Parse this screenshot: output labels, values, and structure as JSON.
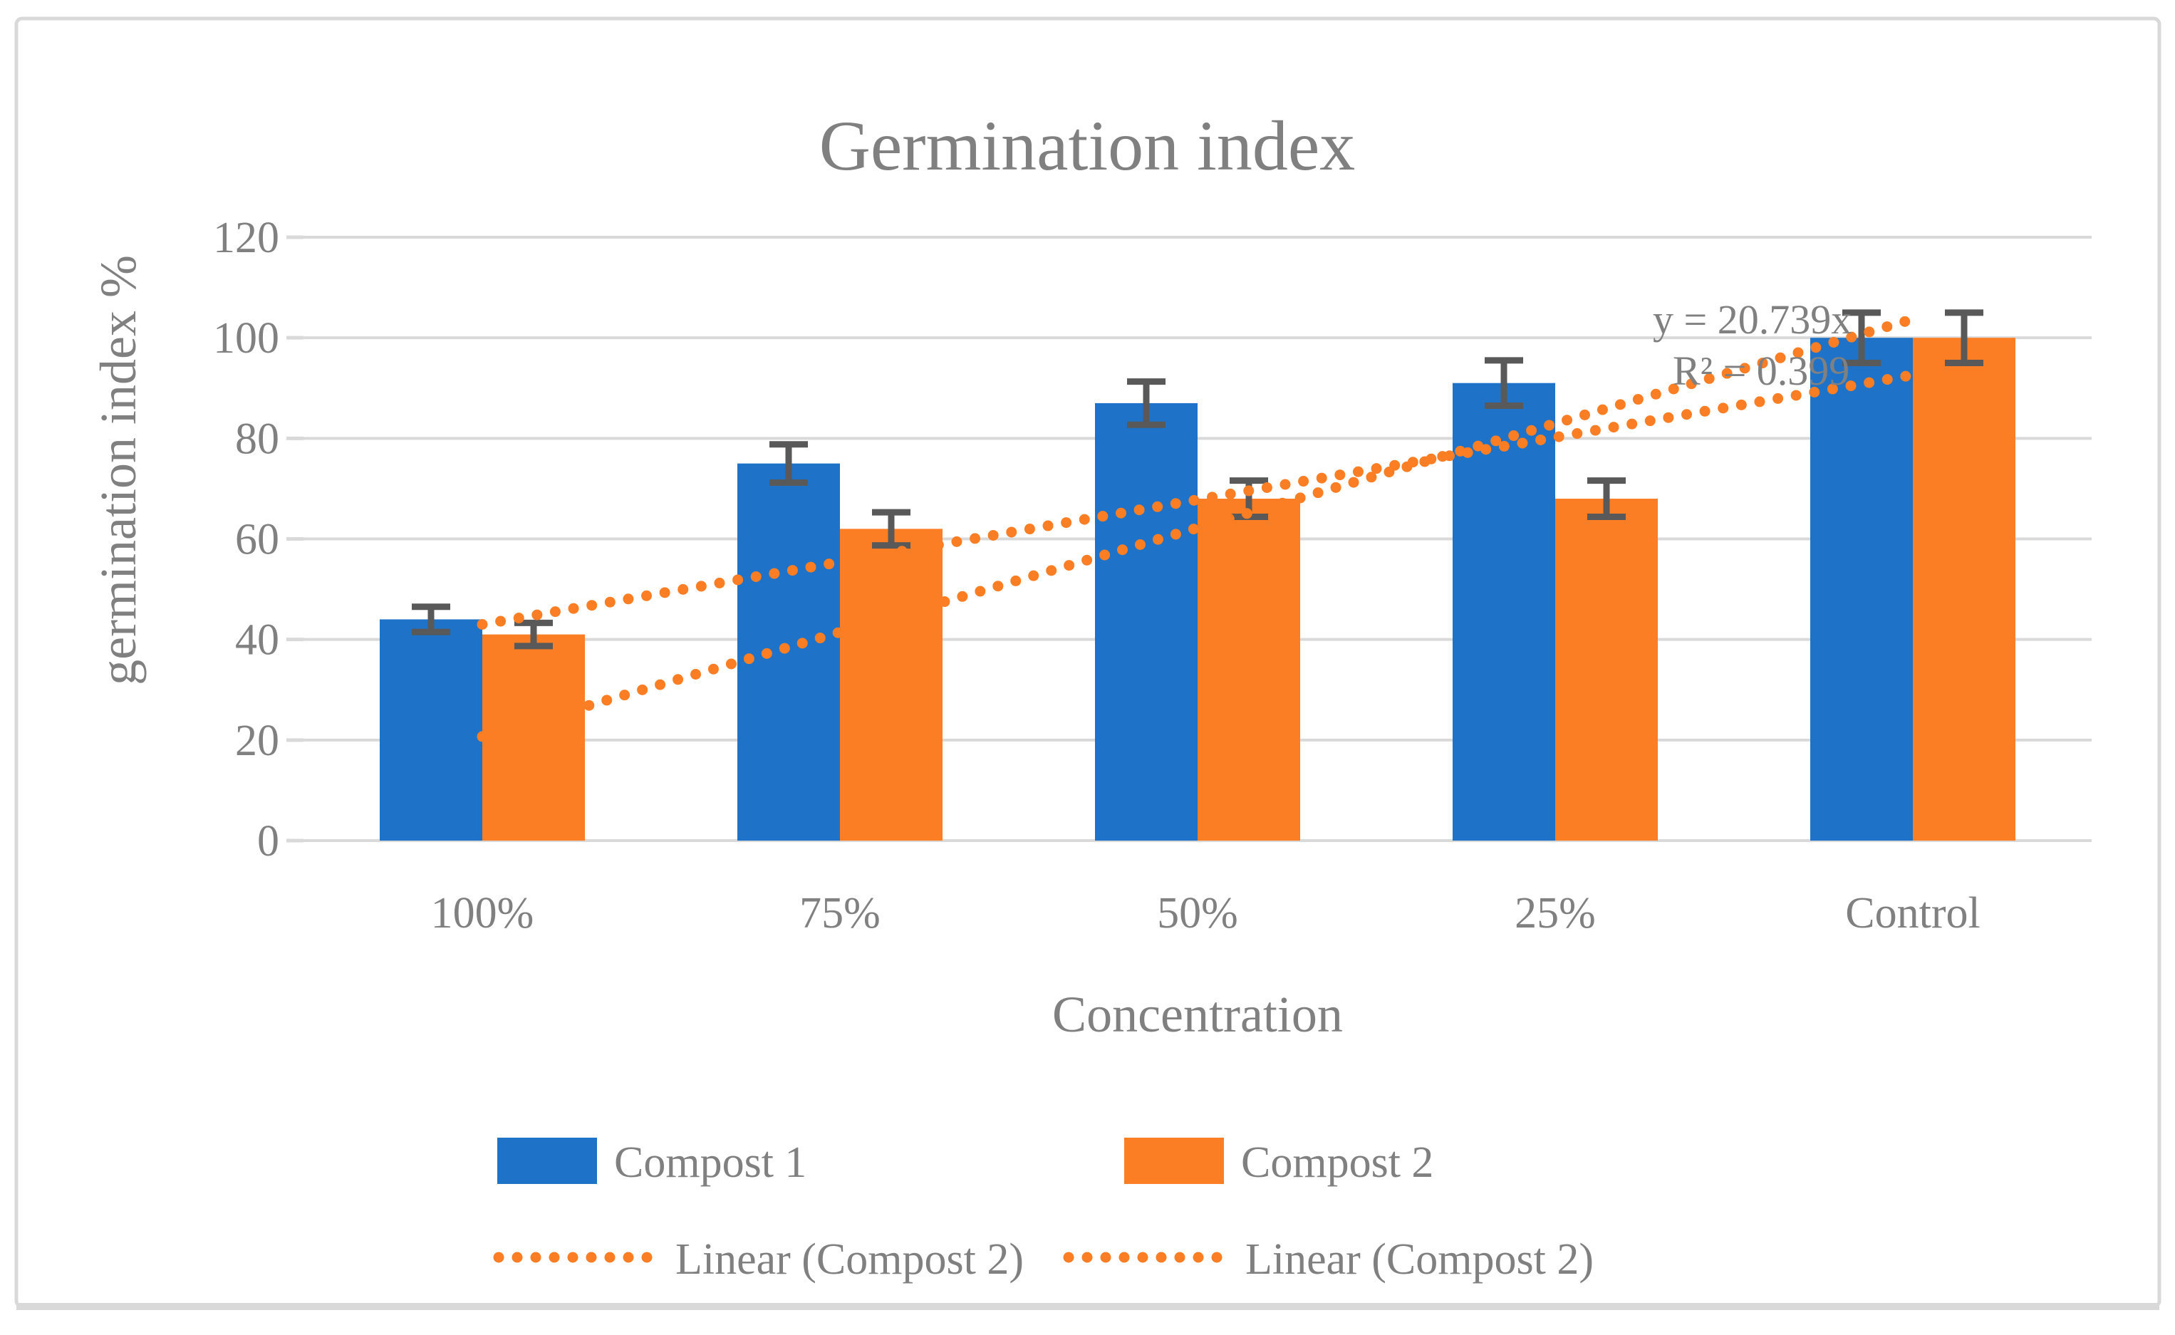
{
  "chart_data": {
    "type": "bar",
    "title": "Germination index",
    "xlabel": "Concentration",
    "ylabel": "germination index %",
    "categories": [
      "100%",
      "75%",
      "50%",
      "25%",
      "Control"
    ],
    "series": [
      {
        "name": "Compost 1",
        "color": "#1E73C8",
        "values": [
          44,
          75,
          87,
          91,
          100
        ],
        "errors": [
          2.5,
          3.8,
          4.3,
          4.5,
          5.0
        ]
      },
      {
        "name": "Compost 2",
        "color": "#FB7E24",
        "values": [
          41,
          62,
          68,
          68,
          100
        ],
        "errors": [
          2.3,
          3.3,
          3.6,
          3.6,
          5.0
        ]
      }
    ],
    "trendlines": [
      {
        "name": "Linear (Compost 2)",
        "style": "dotted",
        "color": "#FB7E24",
        "x_start": 1,
        "x_end": 5,
        "y_start": 43.0,
        "y_end": 92.6
      },
      {
        "name": "Linear (Compost 2)",
        "style": "dotted",
        "color": "#FB7E24",
        "equation": "y = 20.739x",
        "r_squared": "R² = 0.399",
        "x_start": 1,
        "x_end": 5,
        "y_start": 20.7,
        "y_end": 103.7
      }
    ],
    "ylim": [
      0,
      120
    ],
    "ytick_step": 20,
    "yticks": [
      0,
      20,
      40,
      60,
      80,
      100,
      120
    ],
    "gridlines": true,
    "legend_position": "bottom",
    "error_bar_color": "#595959",
    "gridline_color": "#D9D9D9",
    "text_color": "#808080",
    "border_color": "#D9D9D9"
  }
}
